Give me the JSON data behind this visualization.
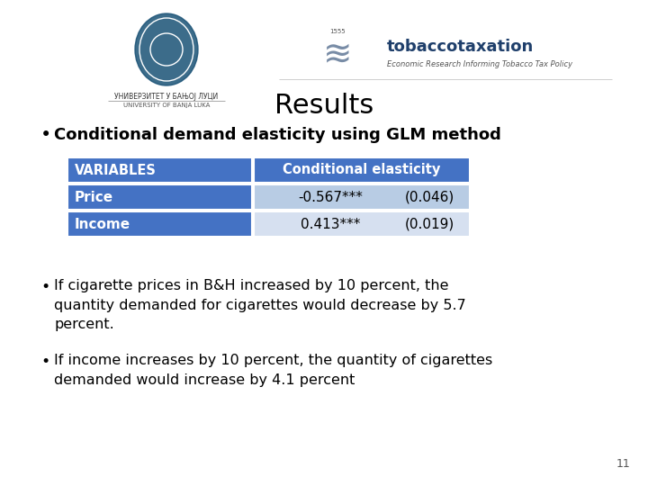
{
  "title": "Results",
  "title_fontsize": 22,
  "bullet1": "Conditional demand elasticity using GLM method",
  "bullet1_fontsize": 13,
  "table_header": [
    "VARIABLES",
    "Conditional elasticity"
  ],
  "table_rows": [
    [
      "Price",
      "-0.567***",
      "(0.046)"
    ],
    [
      "Income",
      "0.413***",
      "(0.019)"
    ]
  ],
  "table_col1_header_color": "#4472C4",
  "table_col2_header_color": "#4472C4",
  "table_row1_col1_color": "#4472C4",
  "table_row1_col2_color": "#B8CCE4",
  "table_row2_col1_color": "#4472C4",
  "table_row2_col2_color": "#D6E0F0",
  "table_header_text_color": "#FFFFFF",
  "table_row_col1_text_color": "#FFFFFF",
  "table_row_col2_text_color": "#000000",
  "bullet2": "If cigarette prices in B&H increased by 10 percent, the\nquantity demanded for cigarettes would decrease by 5.7\npercent.",
  "bullet3": "If income increases by 10 percent, the quantity of cigarettes\ndemanded would increase by 4.1 percent",
  "bullet_fontsize": 11.5,
  "page_number": "11",
  "bg_color": "#FFFFFF",
  "univ_text1": "УНИВЕРЗИТЕТ У БАЊОЈ ЛУЦИ",
  "univ_text2": "UNIVERSITY OF BANJA LUKA",
  "tobacco_text1": "tobaccotaxation",
  "tobacco_text2": "Economic Research Informing Tobacco Tax Policy"
}
